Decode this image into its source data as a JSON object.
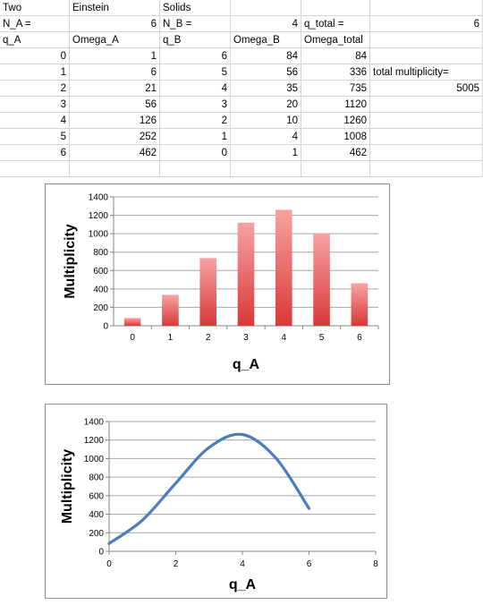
{
  "sheet": {
    "rows": [
      [
        "Two",
        "Einstein",
        "Solids",
        "",
        "",
        ""
      ],
      [
        "N_A =",
        "6",
        "N_B =",
        "4",
        "q_total =",
        "6"
      ],
      [
        "q_A",
        "Omega_A",
        "q_B",
        "Omega_B",
        "Omega_total",
        ""
      ],
      [
        "0",
        "1",
        "6",
        "84",
        "84",
        ""
      ],
      [
        "1",
        "6",
        "5",
        "56",
        "336",
        "total multiplicity="
      ],
      [
        "2",
        "21",
        "4",
        "35",
        "735",
        "5005"
      ],
      [
        "3",
        "56",
        "3",
        "20",
        "1120",
        ""
      ],
      [
        "4",
        "126",
        "2",
        "10",
        "1260",
        ""
      ],
      [
        "5",
        "252",
        "1",
        "4",
        "1008",
        ""
      ],
      [
        "6",
        "462",
        "0",
        "1",
        "462",
        ""
      ],
      [
        "",
        "",
        "",
        "",
        "",
        ""
      ]
    ]
  },
  "chart_data": [
    {
      "type": "bar",
      "categories": [
        "0",
        "1",
        "2",
        "3",
        "4",
        "5",
        "6"
      ],
      "values": [
        84,
        336,
        735,
        1120,
        1260,
        1008,
        462
      ],
      "xlabel": "q_A",
      "ylabel": "Multiplicity",
      "ylim": [
        0,
        1400
      ],
      "yticks": [
        "0",
        "200",
        "400",
        "600",
        "800",
        "1000",
        "1200",
        "1400"
      ],
      "grid": true,
      "colors": {
        "bar_top": "#f7a3a3",
        "bar_bottom": "#d93838",
        "grid": "#a6a6a6"
      }
    },
    {
      "type": "line",
      "x": [
        0,
        1,
        2,
        3,
        4,
        5,
        6
      ],
      "values": [
        84,
        336,
        735,
        1120,
        1260,
        1008,
        462
      ],
      "xlabel": "q_A",
      "ylabel": "Multiplicity",
      "xlim": [
        0,
        8
      ],
      "ylim": [
        0,
        1400
      ],
      "xticks": [
        "0",
        "2",
        "4",
        "6",
        "8"
      ],
      "yticks": [
        "0",
        "200",
        "400",
        "600",
        "800",
        "1000",
        "1200",
        "1400"
      ],
      "grid": true,
      "smooth": true,
      "colors": {
        "line": "#4a7ebb",
        "grid": "#a6a6a6"
      }
    }
  ]
}
